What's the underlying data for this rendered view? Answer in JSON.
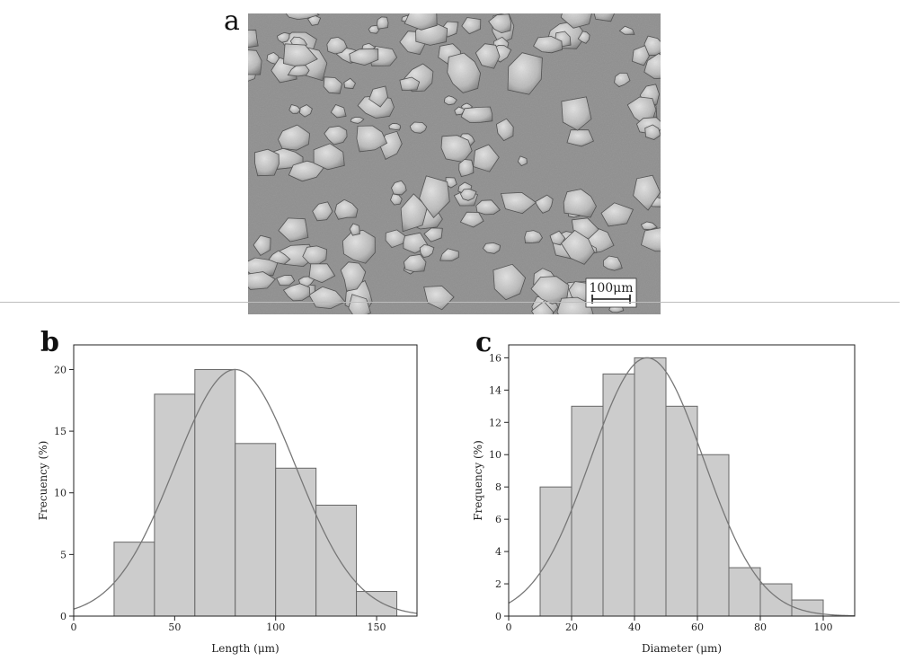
{
  "figure": {
    "panel_a_label": "a",
    "panel_b_label": "b",
    "panel_c_label": "c",
    "scale_bar_label": "100μm"
  },
  "chart_data": [
    {
      "type": "bar",
      "panel": "b",
      "bin_edges": [
        20,
        40,
        60,
        80,
        100,
        120,
        140,
        160
      ],
      "values": [
        6,
        18,
        20,
        14,
        12,
        9,
        2
      ],
      "fit_curve": {
        "type": "normal",
        "mean": 80,
        "sd": 30,
        "peak": 20
      },
      "xlabel": "Length (μm)",
      "ylabel": "Frecuency (%)",
      "xlim": [
        0,
        170
      ],
      "ylim": [
        0,
        22
      ],
      "xticks": [
        0,
        50,
        100,
        150
      ],
      "yticks": [
        0,
        5,
        10,
        15,
        20
      ],
      "grid": false,
      "bar_color": "#cccccc",
      "edge_color": "#666666",
      "curve_color": "#777777"
    },
    {
      "type": "bar",
      "panel": "c",
      "bin_edges": [
        10,
        20,
        30,
        40,
        50,
        60,
        70,
        80,
        90,
        100
      ],
      "values": [
        8,
        13,
        15,
        16,
        13,
        10,
        3,
        2,
        1
      ],
      "fit_curve": {
        "type": "normal",
        "mean": 44,
        "sd": 18,
        "peak": 16
      },
      "xlabel": "Diameter (μm)",
      "ylabel": "Frequency (%)",
      "xlim": [
        0,
        110
      ],
      "ylim": [
        0,
        16.8
      ],
      "xticks": [
        0,
        20,
        40,
        60,
        80,
        100
      ],
      "yticks": [
        0,
        2,
        4,
        6,
        8,
        10,
        12,
        14,
        16
      ],
      "grid": false,
      "bar_color": "#cccccc",
      "edge_color": "#666666",
      "curve_color": "#777777"
    }
  ]
}
